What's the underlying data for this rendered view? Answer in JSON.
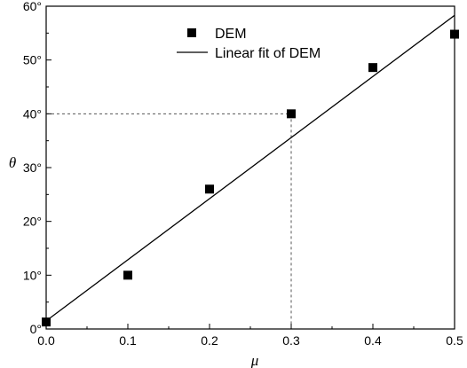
{
  "chart_data": {
    "type": "scatter",
    "title": "",
    "xlabel": "μ",
    "ylabel": "θ",
    "xlim": [
      0.0,
      0.5
    ],
    "ylim": [
      0,
      60
    ],
    "x_ticks": [
      0.0,
      0.1,
      0.2,
      0.3,
      0.4,
      0.5
    ],
    "x_tick_labels": [
      "0.0",
      "0.1",
      "0.2",
      "0.3",
      "0.4",
      "0.5"
    ],
    "y_ticks": [
      0,
      10,
      20,
      30,
      40,
      50,
      60
    ],
    "y_tick_labels": [
      "0°",
      "10°",
      "20°",
      "30°",
      "40°",
      "50°",
      "60°"
    ],
    "grid": false,
    "legend_position": "top-center",
    "series": [
      {
        "name": "DEM",
        "kind": "scatter",
        "marker": "square",
        "color": "#000000",
        "x": [
          0.0,
          0.1,
          0.2,
          0.3,
          0.4,
          0.5
        ],
        "y": [
          1.3,
          10.0,
          26.0,
          40.0,
          48.6,
          54.8
        ]
      },
      {
        "name": "Linear fit of DEM",
        "kind": "line",
        "color": "#000000",
        "x": [
          0.0,
          0.5
        ],
        "y": [
          1.5,
          58.3
        ]
      }
    ],
    "annotations": [
      {
        "kind": "dashed-guide",
        "x": 0.3,
        "y": 40
      }
    ]
  }
}
